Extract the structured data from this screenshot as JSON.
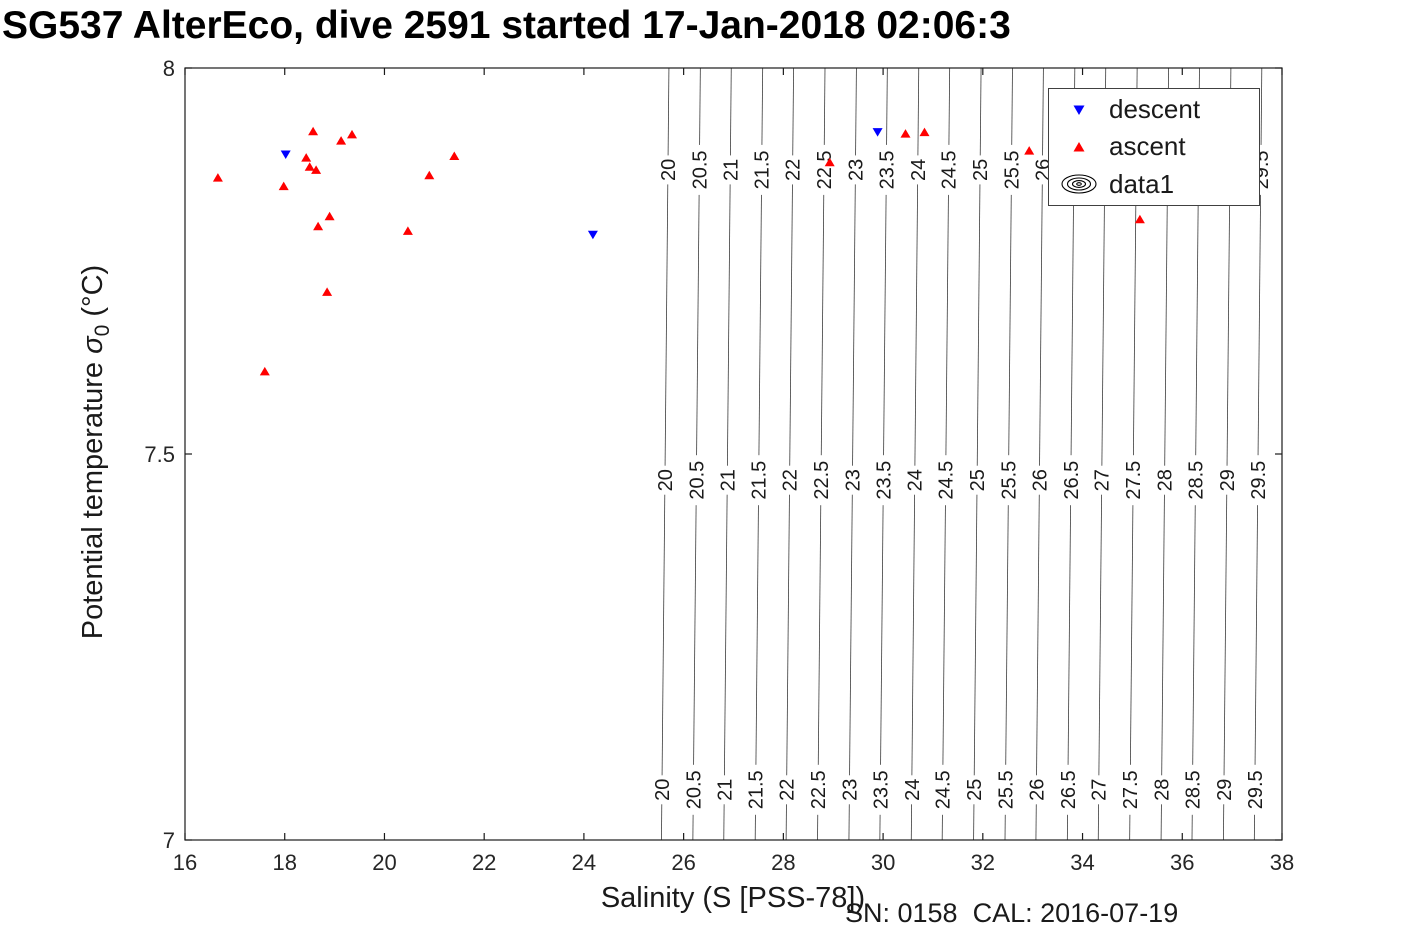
{
  "footer_text": "SN: 0158  CAL: 2016-07-19",
  "chart_data": {
    "type": "scatter",
    "title": "SG537 AlterEco, dive 2591 started 17-Jan-2018 02:06:3",
    "xlabel": "Salinity (S [PSS-78])",
    "ylabel": "Potential temperature σ0 (°C)",
    "ylabel_parts": {
      "prefix": "Potential temperature ",
      "sigma": "σ",
      "sub": "0",
      "suffix": " (°C)"
    },
    "xlim": [
      16,
      38
    ],
    "ylim": [
      7,
      8
    ],
    "xticks": [
      16,
      18,
      20,
      22,
      24,
      26,
      28,
      30,
      32,
      34,
      36,
      38
    ],
    "yticks": [
      7,
      7.5,
      8
    ],
    "ytick_labels": [
      "7",
      "7.5",
      "8"
    ],
    "grid": false,
    "legend_position": "top-right",
    "legend_entries": [
      "descent",
      "ascent",
      "data1"
    ],
    "axis_color": "#1a1a1a",
    "contour_color": "#3c3c3c",
    "series": [
      {
        "name": "descent",
        "marker": "triangle-down-icon",
        "color": "#0000ff",
        "points": [
          [
            18.02,
            7.888
          ],
          [
            24.18,
            7.784
          ],
          [
            29.89,
            7.917
          ]
        ]
      },
      {
        "name": "ascent",
        "marker": "triangle-up-icon",
        "color": "#ff0000",
        "points": [
          [
            16.66,
            7.858
          ],
          [
            17.6,
            7.607
          ],
          [
            17.98,
            7.847
          ],
          [
            18.43,
            7.884
          ],
          [
            18.5,
            7.872
          ],
          [
            18.57,
            7.918
          ],
          [
            18.63,
            7.868
          ],
          [
            18.67,
            7.795
          ],
          [
            18.85,
            7.71
          ],
          [
            18.9,
            7.808
          ],
          [
            19.13,
            7.906
          ],
          [
            19.35,
            7.914
          ],
          [
            20.47,
            7.789
          ],
          [
            20.9,
            7.861
          ],
          [
            21.4,
            7.886
          ],
          [
            28.93,
            7.878
          ],
          [
            30.45,
            7.915
          ],
          [
            30.83,
            7.917
          ],
          [
            32.93,
            7.893
          ],
          [
            35.15,
            7.804
          ]
        ]
      },
      {
        "name": "data1",
        "marker": "contour-rings-icon",
        "color": "#000000",
        "points": []
      }
    ],
    "contours": {
      "levels": [
        20,
        20.5,
        21,
        21.5,
        22,
        22.5,
        23,
        23.5,
        24,
        24.5,
        25,
        25.5,
        26,
        26.5,
        27,
        27.5,
        28,
        28.5,
        29,
        29.5
      ],
      "s_at_t7_5": [
        25.63,
        26.26,
        26.88,
        27.51,
        28.13,
        28.76,
        29.39,
        30.01,
        30.64,
        31.26,
        31.89,
        32.52,
        33.14,
        33.77,
        34.39,
        35.02,
        35.65,
        36.27,
        36.9,
        37.52
      ],
      "slope_s_per_degC": 0.15,
      "label_rows_t": [
        7.868,
        7.466,
        7.065
      ]
    }
  }
}
